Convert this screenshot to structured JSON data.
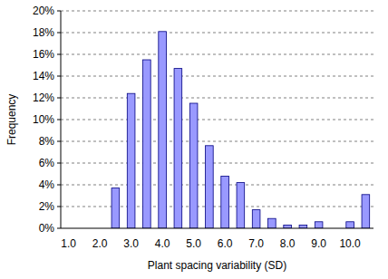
{
  "chart_data": {
    "type": "bar",
    "x_label": "Plant spacing variability (SD)",
    "y_label": "Frequency",
    "categories": [
      "1.0",
      null,
      "2.0",
      null,
      "3.0",
      null,
      "4.0",
      null,
      "5.0",
      null,
      "6.0",
      null,
      "7.0",
      null,
      "8.0",
      null,
      "9.0",
      null,
      "10.0",
      null
    ],
    "values": [
      0,
      0,
      0,
      3.7,
      12.4,
      15.5,
      18.1,
      14.7,
      11.5,
      7.6,
      4.8,
      4.2,
      1.7,
      0.9,
      0.3,
      0.3,
      0.6,
      0,
      0.6,
      3.1
    ],
    "color": "#9999ff",
    "ylim": [
      0,
      20
    ],
    "yticks": [
      {
        "value": 0,
        "label": "0%"
      },
      {
        "value": 2,
        "label": "2%"
      },
      {
        "value": 4,
        "label": "4%"
      },
      {
        "value": 6,
        "label": "6%"
      },
      {
        "value": 8,
        "label": "8%"
      },
      {
        "value": 10,
        "label": "10%"
      },
      {
        "value": 12,
        "label": "12%"
      },
      {
        "value": 14,
        "label": "14%"
      },
      {
        "value": 16,
        "label": "16%"
      },
      {
        "value": 18,
        "label": "18%"
      },
      {
        "value": 20,
        "label": "20%"
      }
    ],
    "grid": true
  }
}
